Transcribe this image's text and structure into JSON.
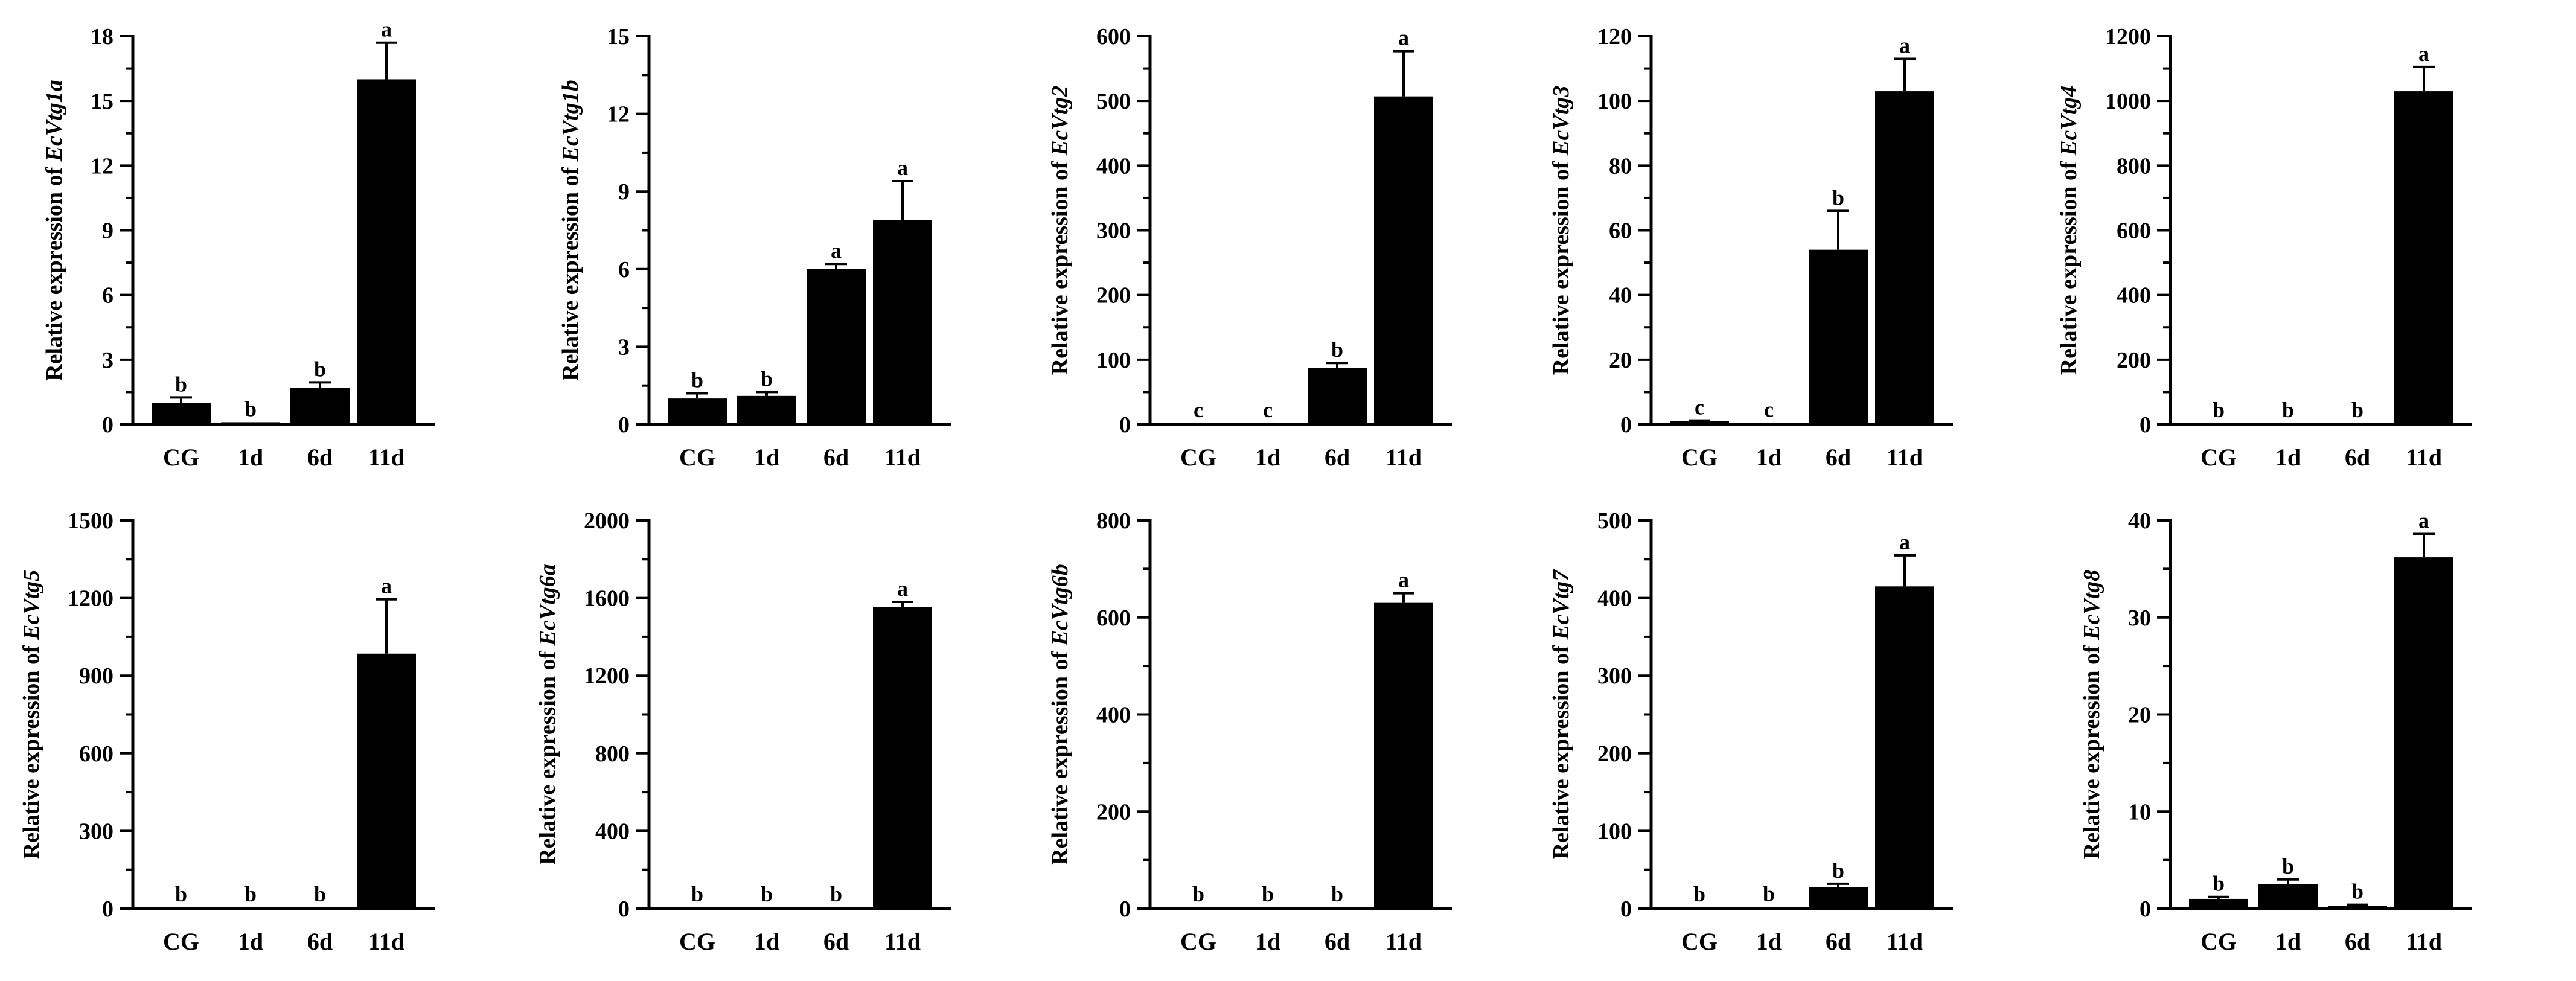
{
  "colors": {
    "bar": "#000000",
    "axis": "#000000",
    "background": "#ffffff"
  },
  "chart_data": [
    {
      "type": "bar",
      "ylabel_prefix": "Relative expression of ",
      "gene": "EcVtg1a",
      "categories": [
        "CG",
        "1d",
        "6d",
        "11d"
      ],
      "values": [
        1.0,
        0.1,
        1.7,
        16.0
      ],
      "errors": [
        0.25,
        0.05,
        0.25,
        1.7
      ],
      "significance": [
        "b",
        "b",
        "b",
        "a"
      ],
      "ylim": [
        0,
        18
      ],
      "yticks": [
        "0",
        "3",
        "6",
        "9",
        "12",
        "15",
        "18"
      ]
    },
    {
      "type": "bar",
      "ylabel_prefix": "Relative expression of ",
      "gene": "EcVtg1b",
      "categories": [
        "CG",
        "1d",
        "6d",
        "11d"
      ],
      "values": [
        1.0,
        1.1,
        6.0,
        7.9
      ],
      "errors": [
        0.2,
        0.15,
        0.2,
        1.5
      ],
      "significance": [
        "b",
        "b",
        "a",
        "a"
      ],
      "ylim": [
        0,
        15
      ],
      "yticks": [
        "0",
        "3",
        "6",
        "9",
        "12",
        "15"
      ]
    },
    {
      "type": "bar",
      "ylabel_prefix": "Relative expression of ",
      "gene": "EcVtg2",
      "categories": [
        "CG",
        "1d",
        "6d",
        "11d"
      ],
      "values": [
        1,
        2,
        87,
        507
      ],
      "errors": [
        0.5,
        0.5,
        8,
        70
      ],
      "significance": [
        "c",
        "c",
        "b",
        "a"
      ],
      "ylim": [
        0,
        600
      ],
      "yticks": [
        "0",
        "100",
        "200",
        "300",
        "400",
        "500",
        "600"
      ]
    },
    {
      "type": "bar",
      "ylabel_prefix": "Relative expression of ",
      "gene": "EcVtg3",
      "categories": [
        "CG",
        "1d",
        "6d",
        "11d"
      ],
      "values": [
        1,
        0.5,
        54,
        103
      ],
      "errors": [
        0.2,
        0.1,
        12,
        10
      ],
      "significance": [
        "c",
        "c",
        "b",
        "a"
      ],
      "ylim": [
        0,
        120
      ],
      "yticks": [
        "0",
        "20",
        "40",
        "60",
        "80",
        "100",
        "120"
      ]
    },
    {
      "type": "bar",
      "ylabel_prefix": "Relative expression of ",
      "gene": "EcVtg4",
      "categories": [
        "CG",
        "1d",
        "6d",
        "11d"
      ],
      "values": [
        1,
        1,
        2,
        1030
      ],
      "errors": [
        0.5,
        0.5,
        0.5,
        75
      ],
      "significance": [
        "b",
        "b",
        "b",
        "a"
      ],
      "ylim": [
        0,
        1200
      ],
      "yticks": [
        "0",
        "200",
        "400",
        "600",
        "800",
        "1000",
        "1200"
      ]
    },
    {
      "type": "bar",
      "ylabel_prefix": "Relative expression of ",
      "gene": "EcVtg5",
      "categories": [
        "CG",
        "1d",
        "6d",
        "11d"
      ],
      "values": [
        1,
        1,
        1,
        985
      ],
      "errors": [
        0.5,
        0.5,
        0.5,
        210
      ],
      "significance": [
        "b",
        "b",
        "b",
        "a"
      ],
      "ylim": [
        0,
        1500
      ],
      "yticks": [
        "0",
        "300",
        "600",
        "900",
        "1200",
        "1500"
      ]
    },
    {
      "type": "bar",
      "ylabel_prefix": "Relative expression of ",
      "gene": "EcVtg6a",
      "categories": [
        "CG",
        "1d",
        "6d",
        "11d"
      ],
      "values": [
        1,
        1,
        1,
        1555
      ],
      "errors": [
        0.5,
        0.5,
        0.5,
        25
      ],
      "significance": [
        "b",
        "b",
        "b",
        "a"
      ],
      "ylim": [
        0,
        2000
      ],
      "yticks": [
        "0",
        "400",
        "800",
        "1200",
        "1600",
        "2000"
      ]
    },
    {
      "type": "bar",
      "ylabel_prefix": "Relative expression of ",
      "gene": "EcVtg6b",
      "categories": [
        "CG",
        "1d",
        "6d",
        "11d"
      ],
      "values": [
        1,
        1,
        1,
        630
      ],
      "errors": [
        0.5,
        0.5,
        0.5,
        20
      ],
      "significance": [
        "b",
        "b",
        "b",
        "a"
      ],
      "ylim": [
        0,
        800
      ],
      "yticks": [
        "0",
        "200",
        "400",
        "600",
        "800"
      ]
    },
    {
      "type": "bar",
      "ylabel_prefix": "Relative expression of ",
      "gene": "EcVtg7",
      "categories": [
        "CG",
        "1d",
        "6d",
        "11d"
      ],
      "values": [
        1,
        2,
        28,
        415
      ],
      "errors": [
        0.5,
        0.5,
        4,
        40
      ],
      "significance": [
        "b",
        "b",
        "b",
        "a"
      ],
      "ylim": [
        0,
        500
      ],
      "yticks": [
        "0",
        "100",
        "200",
        "300",
        "400",
        "500"
      ]
    },
    {
      "type": "bar",
      "ylabel_prefix": "Relative expression of ",
      "gene": "EcVtg8",
      "categories": [
        "CG",
        "1d",
        "6d",
        "11d"
      ],
      "values": [
        1.0,
        2.5,
        0.3,
        36.2
      ],
      "errors": [
        0.2,
        0.5,
        0.1,
        2.4
      ],
      "significance": [
        "b",
        "b",
        "b",
        "a"
      ],
      "ylim": [
        0,
        40
      ],
      "yticks": [
        "0",
        "10",
        "20",
        "30",
        "40"
      ]
    }
  ]
}
